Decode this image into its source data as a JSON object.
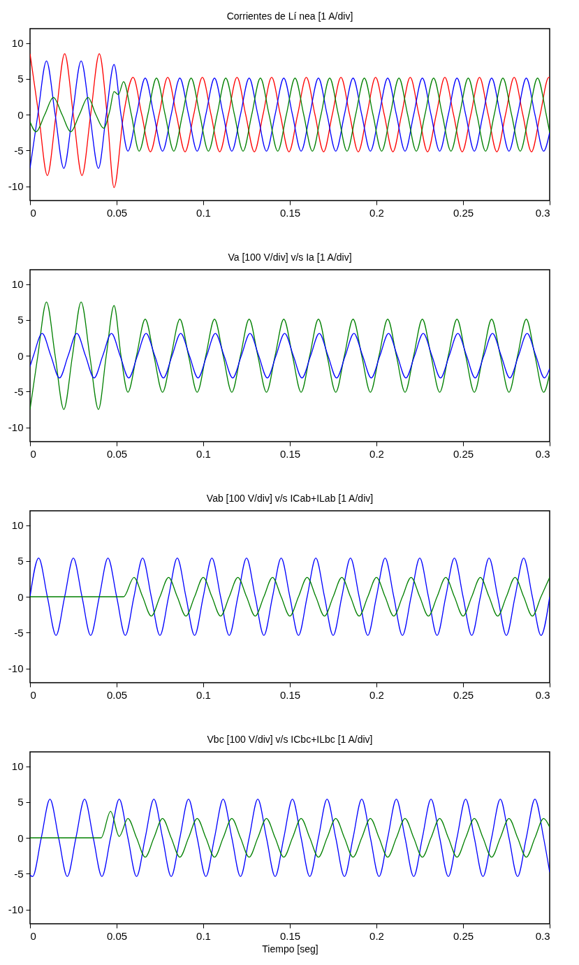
{
  "chart_data": [
    {
      "type": "line",
      "title": "Corrientes de Lí nea [1 A/div]",
      "xlim": [
        0,
        0.3
      ],
      "ylim": [
        -12,
        12
      ],
      "xticks": [
        0,
        0.05,
        0.1,
        0.15,
        0.2,
        0.25,
        0.3
      ],
      "yticks": [
        -10,
        -5,
        0,
        5,
        10
      ],
      "series": [
        {
          "color": "#ff0000",
          "x": [
            0,
            0.005,
            0.01,
            0.015,
            0.02,
            0.025,
            0.03,
            0.035,
            0.04,
            0.0445,
            0.0485,
            0.054,
            0.0595,
            0.0645,
            0.0695,
            0.0745,
            0.0795,
            0.0845,
            0.0895,
            0.0945,
            0.0995,
            0.1045,
            0.1095,
            0.1145,
            0.1195,
            0.1245,
            0.1295,
            0.1345,
            0.1395,
            0.1445,
            0.1495,
            0.1545,
            0.1595,
            0.1645,
            0.1695,
            0.1745,
            0.1795,
            0.1845,
            0.1895,
            0.1945,
            0.1995,
            0.2045,
            0.2095,
            0.2145,
            0.2195,
            0.2245,
            0.2295,
            0.2345,
            0.2395,
            0.2445,
            0.2495,
            0.2545,
            0.2595,
            0.2645,
            0.2695,
            0.2745,
            0.2795,
            0.2845,
            0.2895,
            0.2945,
            0.2995,
            0.3
          ],
          "values": [
            8.5,
            0,
            -8.5,
            0,
            8.5,
            0,
            -8.5,
            0,
            8.5,
            0,
            -10.2,
            0,
            5.2,
            0,
            -5.2,
            0,
            5.2,
            0,
            -5.2,
            0,
            5.2,
            0,
            -5.2,
            0,
            5.2,
            0,
            -5.2,
            0,
            5.2,
            0,
            -5.2,
            0,
            5.2,
            0,
            -5.2,
            0,
            5.2,
            0,
            -5.2,
            0,
            5.2,
            0,
            -5.2,
            0,
            5.2,
            0,
            -5.2,
            0,
            5.2,
            0,
            -5.2,
            0,
            5.2,
            0,
            -5.2,
            0,
            5.2,
            0,
            -5.2,
            0,
            5.2,
            5.2
          ]
        },
        {
          "color": "#0000ff",
          "x": [
            0,
            0.0045,
            0.0095,
            0.0145,
            0.0195,
            0.0245,
            0.0295,
            0.0345,
            0.0395,
            0.044,
            0.0485,
            0.0525,
            0.0565,
            0.0615,
            0.0665,
            0.0715,
            0.0765,
            0.0815,
            0.0865,
            0.0915,
            0.0965,
            0.1015,
            0.1065,
            0.1115,
            0.1165,
            0.1215,
            0.1265,
            0.1315,
            0.1365,
            0.1415,
            0.1465,
            0.1515,
            0.1565,
            0.1615,
            0.1665,
            0.1715,
            0.1765,
            0.1815,
            0.1865,
            0.1915,
            0.1965,
            0.2015,
            0.2065,
            0.2115,
            0.2165,
            0.2215,
            0.2265,
            0.2315,
            0.2365,
            0.2415,
            0.2465,
            0.2515,
            0.2565,
            0.2615,
            0.2665,
            0.2715,
            0.2765,
            0.2815,
            0.2865,
            0.2915,
            0.2965,
            0.3
          ],
          "values": [
            -7.5,
            0,
            7.5,
            0,
            -7.5,
            0,
            7.5,
            0,
            -7.5,
            0,
            7.0,
            0,
            -5.1,
            0,
            5.1,
            0,
            -5.1,
            0,
            5.1,
            0,
            -5.1,
            0,
            5.1,
            0,
            -5.1,
            0,
            5.1,
            0,
            -5.1,
            0,
            5.1,
            0,
            -5.1,
            0,
            5.1,
            0,
            -5.1,
            0,
            5.1,
            0,
            -5.1,
            0,
            5.1,
            0,
            -5.1,
            0,
            5.1,
            0,
            -5.1,
            0,
            5.1,
            0,
            -5.1,
            0,
            5.1,
            0,
            -5.1,
            0,
            5.1,
            0,
            -5.1,
            -2.5
          ]
        },
        {
          "color": "#008000",
          "x": [
            0,
            0.0035,
            0.0085,
            0.0135,
            0.0185,
            0.0235,
            0.0285,
            0.0335,
            0.038,
            0.0425,
            0.046,
            0.0485,
            0.051,
            0.054,
            0.0585,
            0.063,
            0.068,
            0.073,
            0.078,
            0.083,
            0.088,
            0.093,
            0.098,
            0.103,
            0.108,
            0.113,
            0.118,
            0.123,
            0.128,
            0.133,
            0.138,
            0.143,
            0.148,
            0.153,
            0.158,
            0.163,
            0.168,
            0.173,
            0.178,
            0.183,
            0.188,
            0.193,
            0.198,
            0.203,
            0.208,
            0.213,
            0.218,
            0.223,
            0.228,
            0.233,
            0.238,
            0.243,
            0.248,
            0.253,
            0.258,
            0.263,
            0.268,
            0.273,
            0.278,
            0.283,
            0.288,
            0.293,
            0.298,
            0.3
          ],
          "values": [
            -1.0,
            -2.4,
            0,
            2.4,
            0,
            -2.4,
            0,
            2.4,
            0,
            -1.9,
            0.5,
            3.2,
            2.8,
            4.6,
            0,
            -5.1,
            0,
            5.1,
            0,
            -5.1,
            0,
            5.1,
            0,
            -5.1,
            0,
            5.1,
            0,
            -5.1,
            0,
            5.1,
            0,
            -5.1,
            0,
            5.1,
            0,
            -5.1,
            0,
            5.1,
            0,
            -5.1,
            0,
            5.1,
            0,
            -5.1,
            0,
            5.1,
            0,
            -5.1,
            0,
            5.1,
            0,
            -5.1,
            0,
            5.1,
            0,
            -5.1,
            0,
            5.1,
            0,
            -5.1,
            0,
            5.1,
            0,
            -2.5
          ]
        }
      ]
    },
    {
      "type": "line",
      "title": "Va [100 V/div] v/s Ia [1 A/div]",
      "xlim": [
        0,
        0.3
      ],
      "ylim": [
        -12,
        12
      ],
      "xticks": [
        0,
        0.05,
        0.1,
        0.15,
        0.2,
        0.25,
        0.3
      ],
      "yticks": [
        -10,
        -5,
        0,
        5,
        10
      ],
      "series": [
        {
          "color": "#008000",
          "x": [
            0,
            0.0045,
            0.0095,
            0.0145,
            0.0195,
            0.0245,
            0.0295,
            0.0345,
            0.0395,
            0.044,
            0.0485,
            0.0525,
            0.0565,
            0.0615,
            0.0665,
            0.0715,
            0.0765,
            0.0815,
            0.0865,
            0.0915,
            0.0965,
            0.1015,
            0.1065,
            0.1115,
            0.1165,
            0.1215,
            0.1265,
            0.1315,
            0.1365,
            0.1415,
            0.1465,
            0.1515,
            0.1565,
            0.1615,
            0.1665,
            0.1715,
            0.1765,
            0.1815,
            0.1865,
            0.1915,
            0.1965,
            0.2015,
            0.2065,
            0.2115,
            0.2165,
            0.2215,
            0.2265,
            0.2315,
            0.2365,
            0.2415,
            0.2465,
            0.2515,
            0.2565,
            0.2615,
            0.2665,
            0.2715,
            0.2765,
            0.2815,
            0.2865,
            0.2915,
            0.2965,
            0.3
          ],
          "values": [
            -7.5,
            0,
            7.5,
            0,
            -7.5,
            0,
            7.5,
            0,
            -7.5,
            0,
            7.0,
            0,
            -5.1,
            0,
            5.1,
            0,
            -5.1,
            0,
            5.1,
            0,
            -5.1,
            0,
            5.1,
            0,
            -5.1,
            0,
            5.1,
            0,
            -5.1,
            0,
            5.1,
            0,
            -5.1,
            0,
            5.1,
            0,
            -5.1,
            0,
            5.1,
            0,
            -5.1,
            0,
            5.1,
            0,
            -5.1,
            0,
            5.1,
            0,
            -5.1,
            0,
            5.1,
            0,
            -5.1,
            0,
            5.1,
            0,
            -5.1,
            0,
            5.1,
            0,
            -5.1,
            -2.5
          ]
        },
        {
          "color": "#0000ff",
          "x": [
            0,
            0.002,
            0.007,
            0.012,
            0.017,
            0.022,
            0.027,
            0.032,
            0.037,
            0.042,
            0.047,
            0.052,
            0.057,
            0.062,
            0.067,
            0.072,
            0.077,
            0.082,
            0.087,
            0.092,
            0.097,
            0.102,
            0.107,
            0.112,
            0.117,
            0.122,
            0.127,
            0.132,
            0.137,
            0.142,
            0.147,
            0.152,
            0.157,
            0.162,
            0.167,
            0.172,
            0.177,
            0.182,
            0.187,
            0.192,
            0.197,
            0.202,
            0.207,
            0.212,
            0.217,
            0.222,
            0.227,
            0.232,
            0.237,
            0.242,
            0.247,
            0.252,
            0.257,
            0.262,
            0.267,
            0.272,
            0.277,
            0.282,
            0.287,
            0.292,
            0.297,
            0.3
          ],
          "values": [
            -1.5,
            0,
            3.1,
            0,
            -3.1,
            0,
            3.1,
            0,
            -3.1,
            0,
            3.1,
            0,
            -3.1,
            0,
            3.1,
            0,
            -3.1,
            0,
            3.1,
            0,
            -3.1,
            0,
            3.1,
            0,
            -3.1,
            0,
            3.1,
            0,
            -3.1,
            0,
            3.1,
            0,
            -3.1,
            0,
            3.1,
            0,
            -3.1,
            0,
            3.1,
            0,
            -3.1,
            0,
            3.1,
            0,
            -3.1,
            0,
            3.1,
            0,
            -3.1,
            0,
            3.1,
            0,
            -3.1,
            0,
            3.1,
            0,
            -3.1,
            0,
            3.1,
            0,
            -3.1,
            -1.8
          ]
        }
      ]
    },
    {
      "type": "line",
      "title": "Vab [100 V/div] v/s ICab+ILab [1 A/div]",
      "xlim": [
        0,
        0.3
      ],
      "ylim": [
        -12,
        12
      ],
      "xticks": [
        0,
        0.05,
        0.1,
        0.15,
        0.2,
        0.25,
        0.3
      ],
      "yticks": [
        -10,
        -5,
        0,
        5,
        10
      ],
      "series": [
        {
          "color": "#0000ff",
          "x": [
            0,
            0.005,
            0.01,
            0.015,
            0.02,
            0.025,
            0.03,
            0.035,
            0.04,
            0.045,
            0.05,
            0.055,
            0.06,
            0.065,
            0.07,
            0.075,
            0.08,
            0.085,
            0.09,
            0.095,
            0.1,
            0.105,
            0.11,
            0.115,
            0.12,
            0.125,
            0.13,
            0.135,
            0.14,
            0.145,
            0.15,
            0.155,
            0.16,
            0.165,
            0.17,
            0.175,
            0.18,
            0.185,
            0.19,
            0.195,
            0.2,
            0.205,
            0.21,
            0.215,
            0.22,
            0.225,
            0.23,
            0.235,
            0.24,
            0.245,
            0.25,
            0.255,
            0.26,
            0.265,
            0.27,
            0.275,
            0.28,
            0.285,
            0.29,
            0.295,
            0.3
          ],
          "values": [
            0,
            5.4,
            0,
            -5.4,
            0,
            5.4,
            0,
            -5.4,
            0,
            5.4,
            0,
            -5.4,
            0,
            5.4,
            0,
            -5.4,
            0,
            5.4,
            0,
            -5.4,
            0,
            5.4,
            0,
            -5.4,
            0,
            5.4,
            0,
            -5.4,
            0,
            5.4,
            0,
            -5.4,
            0,
            5.4,
            0,
            -5.4,
            0,
            5.4,
            0,
            -5.4,
            0,
            5.4,
            0,
            -5.4,
            0,
            5.4,
            0,
            -5.4,
            0,
            5.4,
            0,
            -5.4,
            0,
            5.4,
            0,
            -5.4,
            0,
            5.4,
            0,
            -5.4,
            0
          ]
        },
        {
          "color": "#008000",
          "x": [
            0,
            0.054,
            0.06,
            0.065,
            0.07,
            0.075,
            0.08,
            0.085,
            0.09,
            0.095,
            0.1,
            0.105,
            0.11,
            0.115,
            0.12,
            0.125,
            0.13,
            0.135,
            0.14,
            0.145,
            0.15,
            0.155,
            0.16,
            0.165,
            0.17,
            0.175,
            0.18,
            0.185,
            0.19,
            0.195,
            0.2,
            0.205,
            0.21,
            0.215,
            0.22,
            0.225,
            0.23,
            0.235,
            0.24,
            0.245,
            0.25,
            0.255,
            0.26,
            0.265,
            0.27,
            0.275,
            0.28,
            0.285,
            0.29,
            0.295,
            0.3
          ],
          "values": [
            0,
            0,
            2.7,
            0,
            -2.7,
            0,
            2.7,
            0,
            -2.7,
            0,
            2.7,
            0,
            -2.7,
            0,
            2.7,
            0,
            -2.7,
            0,
            2.7,
            0,
            -2.7,
            0,
            2.7,
            0,
            -2.7,
            0,
            2.7,
            0,
            -2.7,
            0,
            2.7,
            0,
            -2.7,
            0,
            2.7,
            0,
            -2.7,
            0,
            2.7,
            0,
            -2.7,
            0,
            2.7,
            0,
            -2.7,
            0,
            2.7,
            0,
            -2.7,
            0,
            2.7
          ]
        }
      ]
    },
    {
      "type": "line",
      "title": "Vbc [100 V/div] v/s ICbc+ILbc [1 A/div]",
      "xlabel": "Tiempo [seg]",
      "xlim": [
        0,
        0.3
      ],
      "ylim": [
        -12,
        12
      ],
      "xticks": [
        0,
        0.05,
        0.1,
        0.15,
        0.2,
        0.25,
        0.3
      ],
      "yticks": [
        -10,
        -5,
        0,
        5,
        10
      ],
      "series": [
        {
          "color": "#0000ff",
          "x": [
            0,
            0.0015,
            0.0065,
            0.0115,
            0.0165,
            0.0215,
            0.0265,
            0.0315,
            0.0365,
            0.0415,
            0.0465,
            0.0515,
            0.0565,
            0.0615,
            0.0665,
            0.0715,
            0.0765,
            0.0815,
            0.0865,
            0.0915,
            0.0965,
            0.1015,
            0.1065,
            0.1115,
            0.1165,
            0.1215,
            0.1265,
            0.1315,
            0.1365,
            0.1415,
            0.1465,
            0.1515,
            0.1565,
            0.1615,
            0.1665,
            0.1715,
            0.1765,
            0.1815,
            0.1865,
            0.1915,
            0.1965,
            0.2015,
            0.2065,
            0.2115,
            0.2165,
            0.2215,
            0.2265,
            0.2315,
            0.2365,
            0.2415,
            0.2465,
            0.2515,
            0.2565,
            0.2615,
            0.2665,
            0.2715,
            0.2765,
            0.2815,
            0.2865,
            0.2915,
            0.2965,
            0.3
          ],
          "values": [
            -5.2,
            -5.4,
            0,
            5.4,
            0,
            -5.4,
            0,
            5.4,
            0,
            -5.4,
            0,
            5.4,
            0,
            -5.4,
            0,
            5.4,
            0,
            -5.4,
            0,
            5.4,
            0,
            -5.4,
            0,
            5.4,
            0,
            -5.4,
            0,
            5.4,
            0,
            -5.4,
            0,
            5.4,
            0,
            -5.4,
            0,
            5.4,
            0,
            -5.4,
            0,
            5.4,
            0,
            -5.4,
            0,
            5.4,
            0,
            -5.4,
            0,
            5.4,
            0,
            -5.4,
            0,
            5.4,
            0,
            -5.4,
            0,
            5.4,
            0,
            -5.4,
            0,
            5.4,
            0,
            -4.8
          ]
        },
        {
          "color": "#008000",
          "x": [
            0,
            0.041,
            0.0465,
            0.0515,
            0.0565,
            0.0615,
            0.0665,
            0.0715,
            0.0765,
            0.0815,
            0.0865,
            0.0915,
            0.0965,
            0.1015,
            0.1065,
            0.1115,
            0.1165,
            0.1215,
            0.1265,
            0.1315,
            0.1365,
            0.1415,
            0.1465,
            0.1515,
            0.1565,
            0.1615,
            0.1665,
            0.1715,
            0.1765,
            0.1815,
            0.1865,
            0.1915,
            0.1965,
            0.2015,
            0.2065,
            0.2115,
            0.2165,
            0.2215,
            0.2265,
            0.2315,
            0.2365,
            0.2415,
            0.2465,
            0.2515,
            0.2565,
            0.2615,
            0.2665,
            0.2715,
            0.2765,
            0.2815,
            0.2865,
            0.2915,
            0.2965,
            0.3
          ],
          "values": [
            0,
            0,
            3.7,
            0.2,
            2.7,
            0,
            -2.7,
            0,
            2.7,
            0,
            -2.7,
            0,
            2.7,
            0,
            -2.7,
            0,
            2.7,
            0,
            -2.7,
            0,
            2.7,
            0,
            -2.7,
            0,
            2.7,
            0,
            -2.7,
            0,
            2.7,
            0,
            -2.7,
            0,
            2.7,
            0,
            -2.7,
            0,
            2.7,
            0,
            -2.7,
            0,
            2.7,
            0,
            -2.7,
            0,
            2.7,
            0,
            -2.7,
            0,
            2.7,
            0,
            -2.7,
            0,
            2.7,
            1.5
          ]
        }
      ]
    }
  ]
}
